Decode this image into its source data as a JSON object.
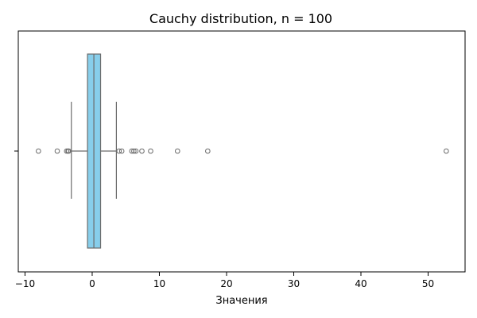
{
  "chart_data": {
    "type": "boxplot",
    "orientation": "horizontal",
    "title": "Cauchy distribution, n = 100",
    "xlabel": "Значения",
    "ylabel": "",
    "xlim": [
      -11,
      55.5
    ],
    "xticks": [
      -10,
      0,
      10,
      20,
      30,
      40,
      50
    ],
    "xtick_labels": [
      "−10",
      "0",
      "10",
      "20",
      "30",
      "40",
      "50"
    ],
    "grid": false,
    "box": {
      "q1": -0.7,
      "median": 0.25,
      "q3": 1.25,
      "whisker_low": -3.1,
      "whisker_high": 3.6,
      "fill_color": "#87CEEB",
      "line_color": "#6b6b6b"
    },
    "outliers": [
      -8.0,
      -5.2,
      -3.8,
      -3.6,
      -3.5,
      4.0,
      4.4,
      5.9,
      6.2,
      6.5,
      7.4,
      8.7,
      12.7,
      17.2,
      52.7
    ]
  }
}
